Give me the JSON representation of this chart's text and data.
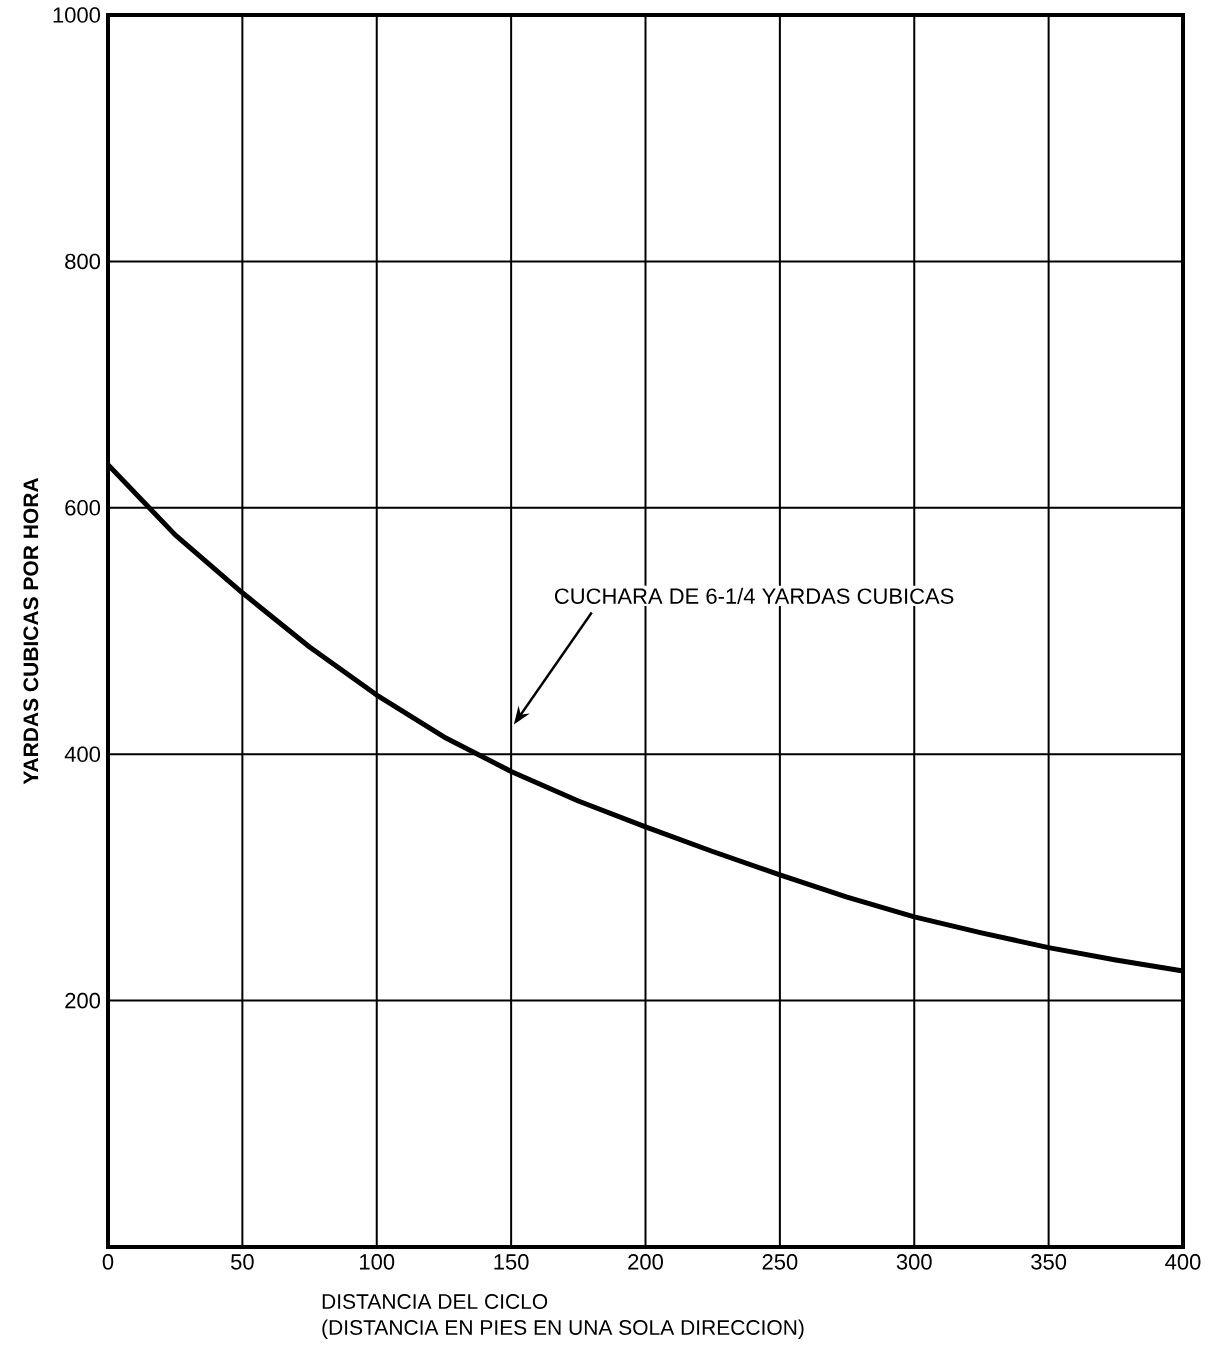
{
  "chart_data": {
    "type": "line",
    "xlabel": "DISTANCIA DEL CICLO",
    "ylabel": "YARDAS CUBICAS POR HORA",
    "x": [
      0,
      25,
      50,
      75,
      100,
      125,
      150,
      175,
      200,
      225,
      250,
      275,
      300,
      325,
      350,
      375,
      400
    ],
    "series": [
      {
        "color": "#000000",
        "values": [
          635,
          578,
          531,
          487,
          448,
          414,
          386,
          362,
          341,
          321,
          302,
          284,
          268,
          255,
          243,
          233,
          224
        ]
      }
    ],
    "xlim": [
      0,
      400
    ],
    "ylim": [
      0,
      1000
    ],
    "xticks": [
      0,
      50,
      100,
      150,
      200,
      250,
      300,
      350,
      400
    ],
    "yticks": [
      {
        "value": 0,
        "label": null
      },
      200,
      400,
      600,
      800,
      1000
    ],
    "grid": true,
    "marker": "none",
    "line_style": "solid",
    "annotations": [
      "CUCHARA DE 6-1/4 YARDAS CUBICAS",
      "(DISTANCIA EN PIES EN UNA SOLA DIRECCION)"
    ]
  }
}
